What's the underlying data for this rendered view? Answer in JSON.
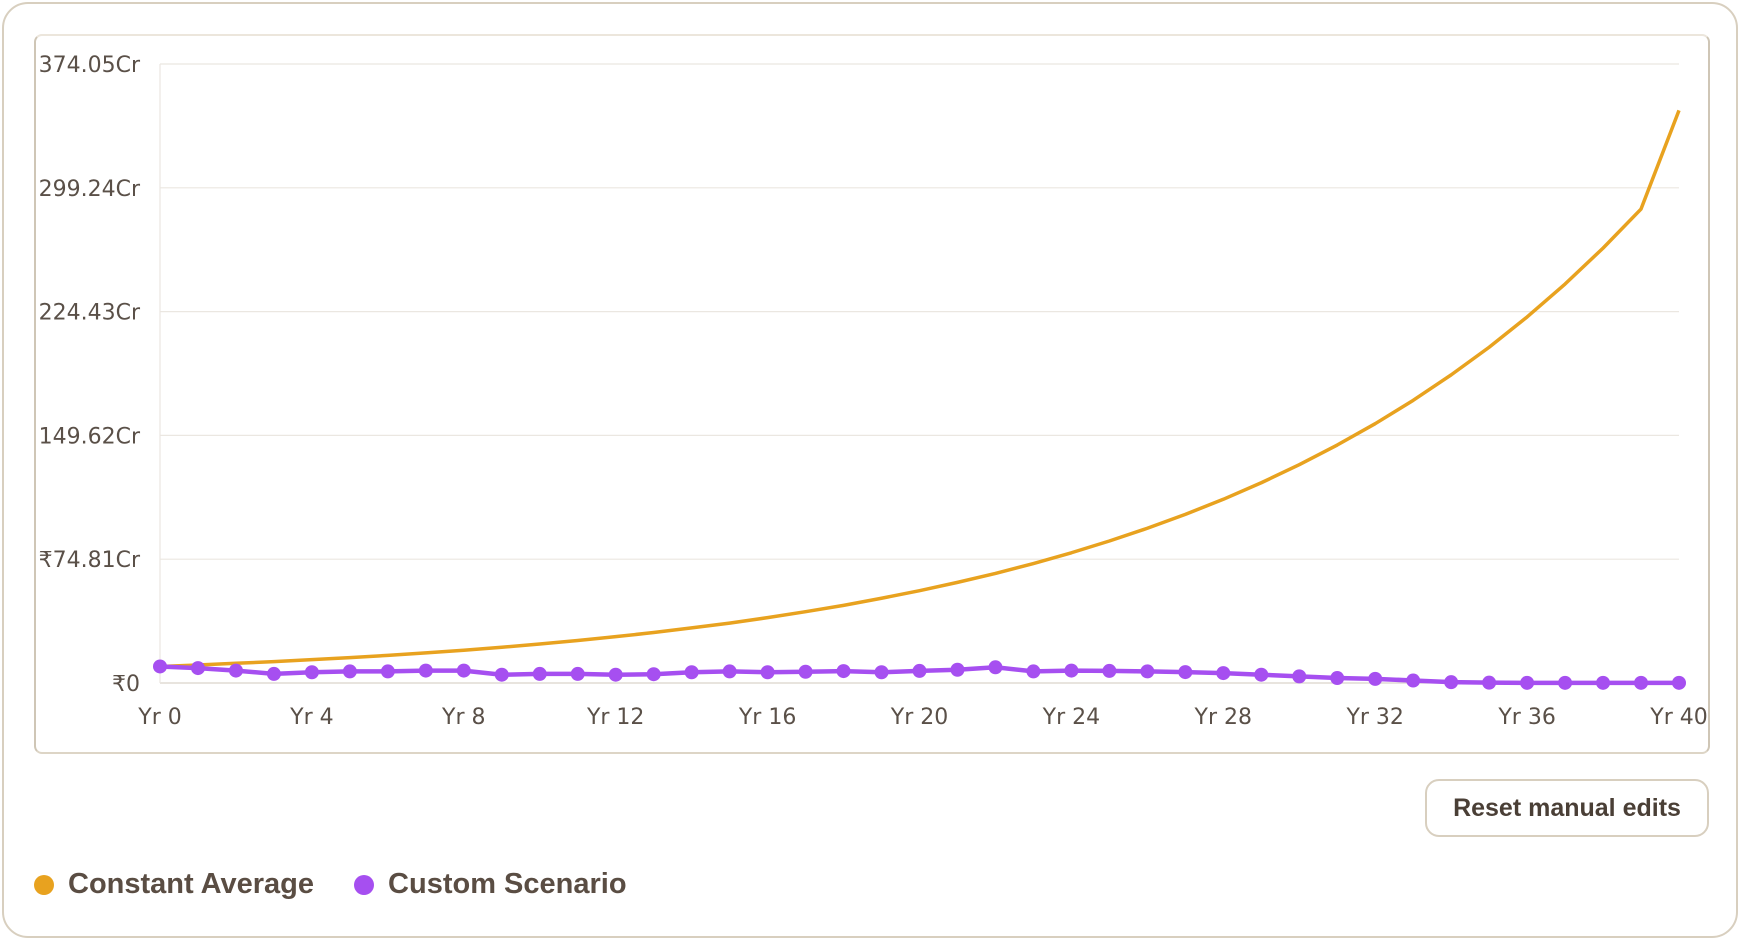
{
  "chart_data": {
    "type": "line",
    "y_ticks": [
      "₹0",
      "₹74.81Cr",
      "149.62Cr",
      "224.43Cr",
      "299.24Cr",
      "374.05Cr"
    ],
    "x_ticks": [
      "Yr 0",
      "Yr 4",
      "Yr 8",
      "Yr 12",
      "Yr 16",
      "Yr 20",
      "Yr 24",
      "Yr 28",
      "Yr 32",
      "Yr 36",
      "Yr 40"
    ],
    "ylim": [
      0,
      374.05
    ],
    "xlim": [
      0,
      40
    ],
    "y_unit": "Cr",
    "grid": true,
    "legend_position": "bottom-left",
    "x": [
      0,
      1,
      2,
      3,
      4,
      5,
      6,
      7,
      8,
      9,
      10,
      11,
      12,
      13,
      14,
      15,
      16,
      17,
      18,
      19,
      20,
      21,
      22,
      23,
      24,
      25,
      26,
      27,
      28,
      29,
      30,
      31,
      32,
      33,
      34,
      35,
      36,
      37,
      38,
      39,
      40
    ],
    "series": [
      {
        "name": "Constant Average",
        "color": "#e8a21f",
        "markers": false,
        "values": [
          10.0,
          10.9,
          11.9,
          12.9,
          14.1,
          15.3,
          16.7,
          18.2,
          19.8,
          21.6,
          23.6,
          25.7,
          28.0,
          30.5,
          33.3,
          36.2,
          39.5,
          43.1,
          46.9,
          51.2,
          55.8,
          60.8,
          66.2,
          72.2,
          78.7,
          85.8,
          93.5,
          101.9,
          111.0,
          121.0,
          131.9,
          143.8,
          156.7,
          170.8,
          186.2,
          202.9,
          221.2,
          241.1,
          262.8,
          286.4,
          346.0
        ]
      },
      {
        "name": "Custom Scenario",
        "color": "#a64ff0",
        "markers": true,
        "values": [
          10.0,
          9.0,
          7.5,
          5.5,
          6.5,
          7.0,
          7.0,
          7.5,
          7.5,
          5.0,
          5.5,
          5.5,
          5.0,
          5.3,
          6.5,
          7.0,
          6.5,
          6.8,
          7.2,
          6.5,
          7.3,
          8.0,
          9.5,
          7.0,
          7.5,
          7.3,
          7.0,
          6.6,
          6.0,
          5.0,
          4.0,
          3.0,
          2.5,
          1.5,
          0.5,
          0.2,
          0.1,
          0.1,
          0.1,
          0.1,
          0.1
        ]
      }
    ]
  },
  "legend": [
    {
      "label": "Constant Average",
      "color": "#e8a21f"
    },
    {
      "label": "Custom Scenario",
      "color": "#a64ff0"
    }
  ],
  "controls": {
    "reset_label": "Reset manual edits"
  }
}
